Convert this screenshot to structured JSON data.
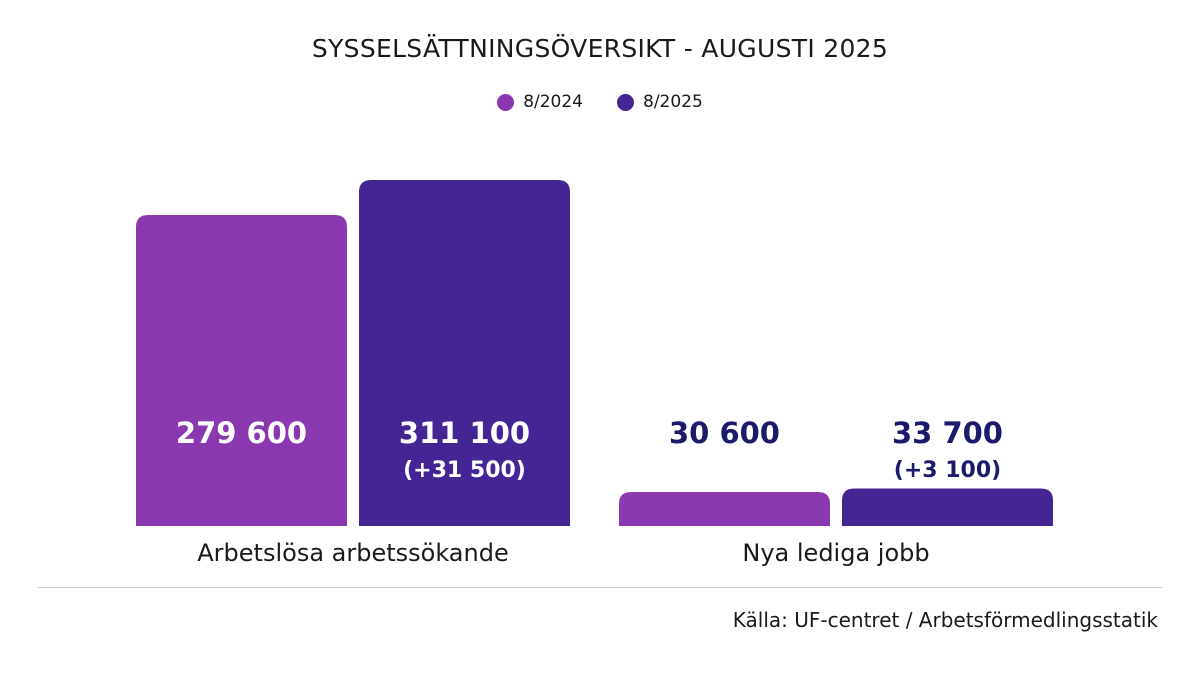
{
  "chart_data": {
    "type": "bar",
    "title": "SYSSELSÄTTNINGSÖVERSIKT - AUGUSTI 2025",
    "categories": [
      "Arbetslösa arbetssökande",
      "Nya lediga jobb"
    ],
    "series": [
      {
        "name": "8/2024",
        "values": [
          279600,
          30600
        ],
        "color": "#8a38b0",
        "labels": [
          "279 600",
          "30 600"
        ],
        "change_labels": [
          "",
          ""
        ]
      },
      {
        "name": "8/2025",
        "values": [
          311100,
          33700
        ],
        "color": "#452594",
        "labels": [
          "311 100",
          "33 700"
        ],
        "change_labels": [
          "(+31 500)",
          "(+3 100)"
        ]
      }
    ],
    "legend_position": "top-center",
    "grid": false
  },
  "source": "Källa: UF-centret / Arbetsförmedlingsstatik",
  "colors": {
    "label_inside": "#ffffff",
    "label_outside": "#1b1a6b"
  }
}
